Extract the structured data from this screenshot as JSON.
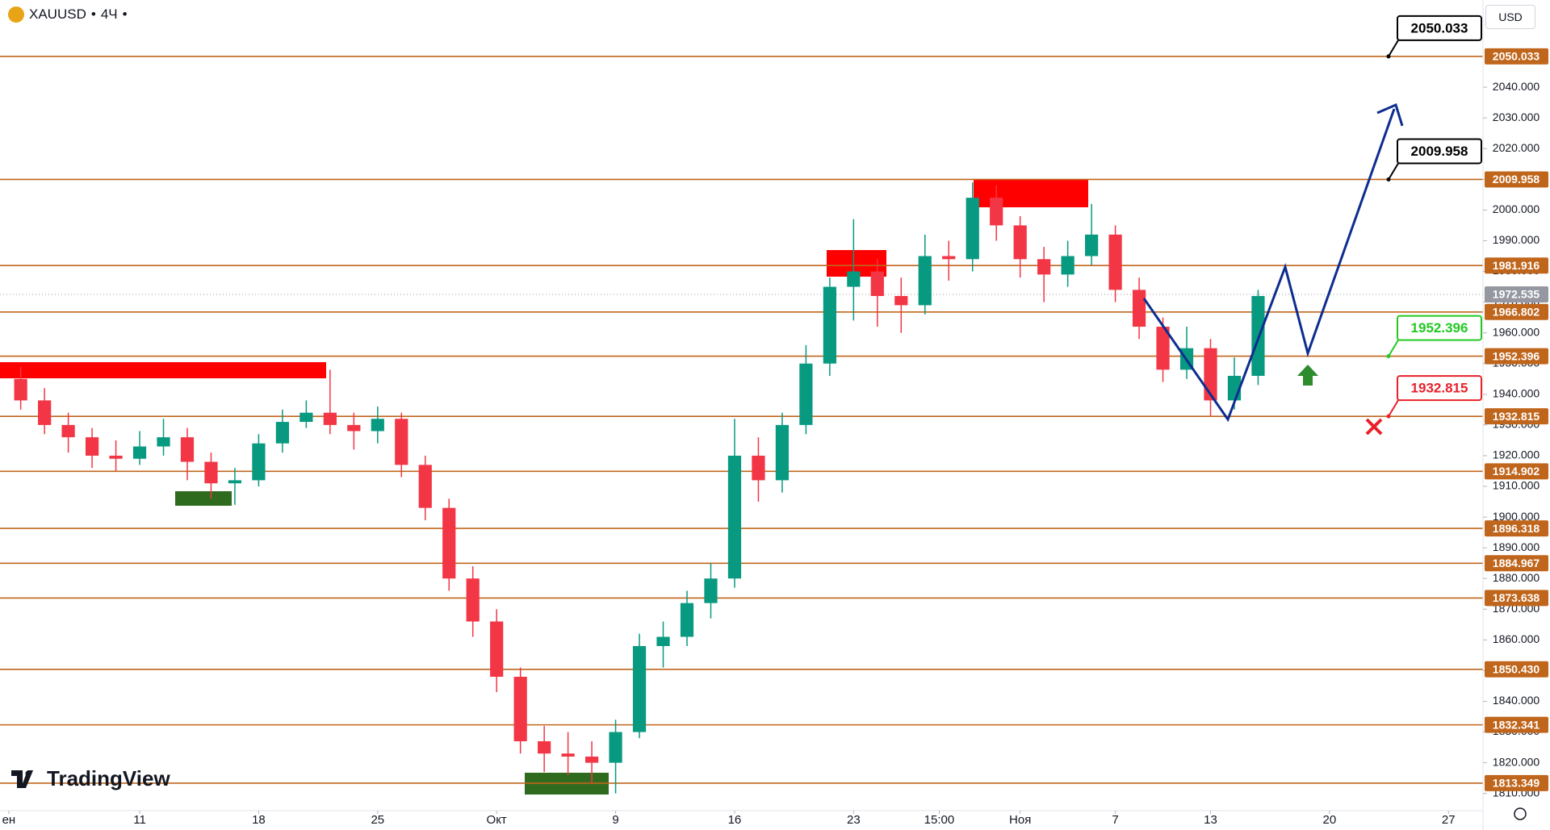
{
  "header": {
    "symbol": "XAUUSD",
    "interval": "4Ч",
    "currency": "USD",
    "brand": "TradingView"
  },
  "chart_data": {
    "type": "candlestick",
    "x": [
      0,
      1,
      2,
      3,
      4,
      5,
      6,
      7,
      8,
      9,
      10,
      11,
      12,
      13,
      14,
      15,
      16,
      17,
      18,
      19,
      20,
      21,
      22,
      23,
      24,
      25,
      26,
      27,
      28,
      29,
      30,
      31,
      32,
      33,
      34,
      35,
      36,
      37,
      38,
      39,
      40,
      41,
      42,
      43,
      44,
      45,
      46,
      47,
      48,
      49,
      50,
      51,
      52
    ],
    "open": [
      1945,
      1938,
      1930,
      1926,
      1920,
      1919,
      1923,
      1926,
      1918,
      1911,
      1912,
      1924,
      1931,
      1934,
      1930,
      1928,
      1932,
      1917,
      1903,
      1880,
      1866,
      1848,
      1827,
      1823,
      1822,
      1820,
      1830,
      1858,
      1861,
      1872,
      1880,
      1920,
      1912,
      1930,
      1950,
      1975,
      1980,
      1972,
      1969,
      1985,
      1984,
      2004,
      1995,
      1984,
      1979,
      1985,
      1992,
      1974,
      1962,
      1948,
      1955,
      1938,
      1946
    ],
    "high": [
      1949,
      1942,
      1934,
      1929,
      1925,
      1928,
      1932,
      1929,
      1921,
      1916,
      1927,
      1935,
      1938,
      1948,
      1934,
      1936,
      1934,
      1920,
      1906,
      1884,
      1870,
      1851,
      1832,
      1830,
      1827,
      1834,
      1862,
      1866,
      1876,
      1885,
      1932,
      1926,
      1934,
      1956,
      1978,
      1997,
      1984,
      1978,
      1992,
      1990,
      2009,
      2008,
      1998,
      1988,
      1990,
      2002,
      1995,
      1978,
      1965,
      1962,
      1958,
      1952,
      1974
    ],
    "low": [
      1935,
      1927,
      1921,
      1916,
      1915,
      1917,
      1920,
      1912,
      1906,
      1904,
      1910,
      1921,
      1929,
      1927,
      1922,
      1924,
      1913,
      1899,
      1876,
      1861,
      1843,
      1823,
      1817,
      1816,
      1813,
      1810,
      1828,
      1851,
      1858,
      1867,
      1877,
      1905,
      1908,
      1927,
      1946,
      1964,
      1962,
      1960,
      1966,
      1977,
      1980,
      1990,
      1978,
      1970,
      1975,
      1982,
      1970,
      1958,
      1944,
      1945,
      1933,
      1935,
      1943
    ],
    "close": [
      1938,
      1930,
      1926,
      1920,
      1919,
      1923,
      1926,
      1918,
      1911,
      1912,
      1924,
      1931,
      1934,
      1930,
      1928,
      1932,
      1917,
      1903,
      1880,
      1866,
      1848,
      1827,
      1823,
      1822,
      1820,
      1830,
      1858,
      1861,
      1872,
      1880,
      1920,
      1912,
      1930,
      1950,
      1975,
      1980,
      1972,
      1969,
      1985,
      1984,
      2004,
      1995,
      1984,
      1979,
      1985,
      1992,
      1974,
      1962,
      1948,
      1955,
      1938,
      1946,
      1972
    ],
    "colors": {
      "up": "#089981",
      "down": "#f23645",
      "level": "#c0661c"
    },
    "xlim": [
      -0.87,
      61.45
    ],
    "xticks": [
      {
        "value": -0.5,
        "label": "ен"
      },
      {
        "value": 5,
        "label": "11"
      },
      {
        "value": 10,
        "label": "18"
      },
      {
        "value": 15,
        "label": "25"
      },
      {
        "value": 20,
        "label": "Окт"
      },
      {
        "value": 25,
        "label": "9"
      },
      {
        "value": 30,
        "label": "16"
      },
      {
        "value": 35,
        "label": "23"
      },
      {
        "value": 38.6,
        "label": "15:00"
      },
      {
        "value": 42,
        "label": "Ноя"
      },
      {
        "value": 46,
        "label": "7"
      },
      {
        "value": 50,
        "label": "13"
      },
      {
        "value": 55,
        "label": "20"
      },
      {
        "value": 60,
        "label": "27"
      }
    ],
    "ylim": [
      1804.4,
      2068.4
    ],
    "yticks": [
      {
        "value": 1810,
        "label": "1810.000"
      },
      {
        "value": 1820,
        "label": "1820.000"
      },
      {
        "value": 1830,
        "label": "1830.000"
      },
      {
        "value": 1840,
        "label": "1840.000"
      },
      {
        "value": 1850,
        "label": "1850.000"
      },
      {
        "value": 1860,
        "label": "1860.000"
      },
      {
        "value": 1870,
        "label": "1870.000"
      },
      {
        "value": 1880,
        "label": "1880.000"
      },
      {
        "value": 1890,
        "label": "1890.000"
      },
      {
        "value": 1900,
        "label": "1900.000"
      },
      {
        "value": 1910,
        "label": "1910.000"
      },
      {
        "value": 1920,
        "label": "1920.000"
      },
      {
        "value": 1930,
        "label": "1930.000"
      },
      {
        "value": 1940,
        "label": "1940.000"
      },
      {
        "value": 1950,
        "label": "1950.000"
      },
      {
        "value": 1960,
        "label": "1960.000"
      },
      {
        "value": 1970,
        "label": "1970.000"
      },
      {
        "value": 1980,
        "label": "1980.000"
      },
      {
        "value": 1990,
        "label": "1990.000"
      },
      {
        "value": 2000,
        "label": "2000.000"
      },
      {
        "value": 2010,
        "label": "2010.000"
      },
      {
        "value": 2020,
        "label": "2020.000"
      },
      {
        "value": 2030,
        "label": "2030.000"
      },
      {
        "value": 2040,
        "label": "2040.000"
      }
    ],
    "levels": [
      {
        "value": 2050.033,
        "label": "2050.033",
        "callout_color": "#000000"
      },
      {
        "value": 2009.958,
        "label": "2009.958",
        "callout_color": "#000000"
      },
      {
        "value": 1981.916,
        "label": "1981.916"
      },
      {
        "value": 1966.802,
        "label": "1966.802"
      },
      {
        "value": 1952.396,
        "label": "1952.396",
        "callout_color": "#22c922"
      },
      {
        "value": 1932.815,
        "label": "1932.815",
        "callout_color": "#e8202a"
      },
      {
        "value": 1914.902,
        "label": "1914.902"
      },
      {
        "value": 1896.318,
        "label": "1896.318"
      },
      {
        "value": 1884.967,
        "label": "1884.967"
      },
      {
        "value": 1873.638,
        "label": "1873.638"
      },
      {
        "value": 1850.43,
        "label": "1850.430"
      },
      {
        "value": 1832.341,
        "label": "1832.341"
      },
      {
        "value": 1813.349,
        "label": "1813.349"
      }
    ],
    "last_price": 1972.535
  }
}
